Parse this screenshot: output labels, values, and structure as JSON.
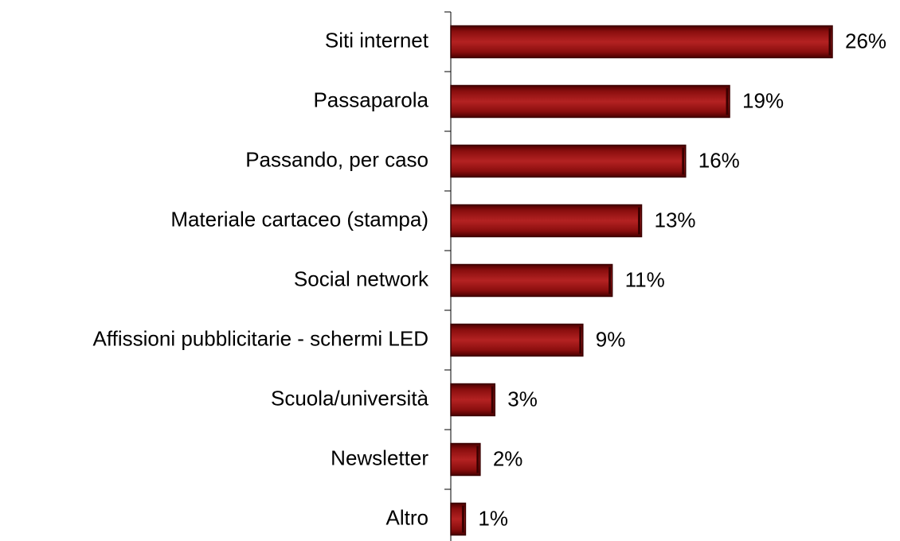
{
  "chart_data": {
    "type": "bar",
    "orientation": "horizontal",
    "categories": [
      "Siti internet",
      "Passaparola",
      "Passando, per caso",
      "Materiale cartaceo (stampa)",
      "Social network",
      "Affissioni pubblicitarie - schermi LED",
      "Scuola/università",
      "Newsletter",
      "Altro"
    ],
    "values": [
      26,
      19,
      16,
      13,
      11,
      9,
      3,
      2,
      1
    ],
    "value_labels": [
      "26%",
      "19%",
      "16%",
      "13%",
      "11%",
      "9%",
      "3%",
      "2%",
      "1%"
    ],
    "color": "#9b1515"
  }
}
